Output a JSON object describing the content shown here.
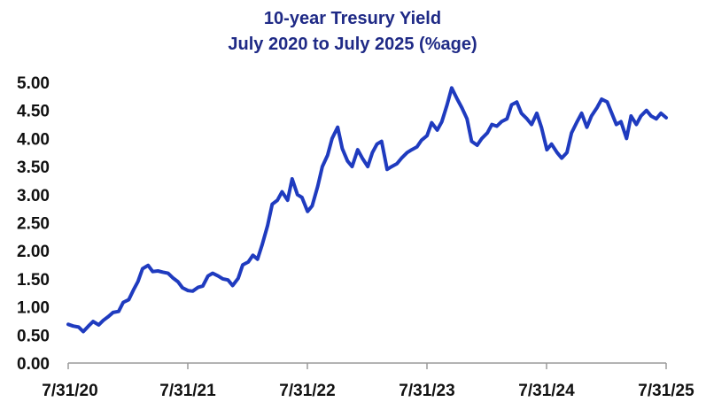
{
  "chart_data": {
    "type": "line",
    "title": "10-year Tresury Yield",
    "subtitle": "July 2020 to July 2025 (%age)",
    "xlabel": "",
    "ylabel": "",
    "ylim": [
      0,
      5
    ],
    "yticks": [
      "0.00",
      "0.50",
      "1.00",
      "1.50",
      "2.00",
      "2.50",
      "3.00",
      "3.50",
      "4.00",
      "4.50",
      "5.00"
    ],
    "xticks": [
      "7/31/20",
      "7/31/21",
      "7/31/22",
      "7/31/23",
      "7/31/24",
      "7/31/25"
    ],
    "xlim": [
      "2020-07-31",
      "2025-07-31"
    ],
    "grid": false,
    "legend": "none",
    "line_color": "#1f3bbf",
    "series": [
      {
        "x": [
          "2020-07-31",
          "2020-08-15",
          "2020-09-01",
          "2020-09-15",
          "2020-10-01",
          "2020-10-15",
          "2020-11-01",
          "2020-11-15",
          "2020-12-01",
          "2020-12-15",
          "2021-01-01",
          "2021-01-15",
          "2021-02-01",
          "2021-02-15",
          "2021-03-01",
          "2021-03-15",
          "2021-04-01",
          "2021-04-15",
          "2021-05-01",
          "2021-05-15",
          "2021-06-01",
          "2021-06-15",
          "2021-07-01",
          "2021-07-15",
          "2021-08-01",
          "2021-08-15",
          "2021-09-01",
          "2021-09-15",
          "2021-10-01",
          "2021-10-15",
          "2021-11-01",
          "2021-11-15",
          "2021-12-01",
          "2021-12-15",
          "2022-01-01",
          "2022-01-15",
          "2022-02-01",
          "2022-02-15",
          "2022-03-01",
          "2022-03-15",
          "2022-04-01",
          "2022-04-15",
          "2022-05-01",
          "2022-05-15",
          "2022-06-01",
          "2022-06-15",
          "2022-07-01",
          "2022-07-15",
          "2022-08-01",
          "2022-08-15",
          "2022-09-01",
          "2022-09-15",
          "2022-10-01",
          "2022-10-15",
          "2022-11-01",
          "2022-11-15",
          "2022-12-01",
          "2022-12-15",
          "2023-01-01",
          "2023-01-15",
          "2023-02-01",
          "2023-02-15",
          "2023-03-01",
          "2023-03-15",
          "2023-04-01",
          "2023-04-15",
          "2023-05-01",
          "2023-05-15",
          "2023-06-01",
          "2023-06-15",
          "2023-07-01",
          "2023-07-15",
          "2023-08-01",
          "2023-08-15",
          "2023-09-01",
          "2023-09-15",
          "2023-10-01",
          "2023-10-15",
          "2023-11-01",
          "2023-11-15",
          "2023-12-01",
          "2023-12-15",
          "2024-01-01",
          "2024-01-15",
          "2024-02-01",
          "2024-02-15",
          "2024-03-01",
          "2024-03-15",
          "2024-04-01",
          "2024-04-15",
          "2024-05-01",
          "2024-05-15",
          "2024-06-01",
          "2024-06-15",
          "2024-07-01",
          "2024-07-15",
          "2024-08-01",
          "2024-08-15",
          "2024-09-01",
          "2024-09-15",
          "2024-10-01",
          "2024-10-15",
          "2024-11-01",
          "2024-11-15",
          "2024-12-01",
          "2024-12-15",
          "2025-01-01",
          "2025-01-15",
          "2025-02-01",
          "2025-02-15",
          "2025-03-01",
          "2025-03-15",
          "2025-04-01",
          "2025-04-15",
          "2025-05-01",
          "2025-05-15",
          "2025-06-01",
          "2025-06-15",
          "2025-07-01",
          "2025-07-15",
          "2025-07-31"
        ],
        "values": [
          0.69,
          0.66,
          0.64,
          0.56,
          0.66,
          0.74,
          0.68,
          0.76,
          0.83,
          0.9,
          0.92,
          1.08,
          1.13,
          1.3,
          1.45,
          1.68,
          1.74,
          1.63,
          1.64,
          1.62,
          1.6,
          1.52,
          1.45,
          1.34,
          1.29,
          1.28,
          1.35,
          1.37,
          1.55,
          1.6,
          1.55,
          1.5,
          1.48,
          1.38,
          1.51,
          1.75,
          1.8,
          1.92,
          1.85,
          2.1,
          2.45,
          2.83,
          2.9,
          3.05,
          2.9,
          3.28,
          3.0,
          2.95,
          2.7,
          2.8,
          3.15,
          3.5,
          3.7,
          4.0,
          4.2,
          3.82,
          3.6,
          3.5,
          3.8,
          3.65,
          3.5,
          3.75,
          3.9,
          3.95,
          3.45,
          3.5,
          3.55,
          3.65,
          3.75,
          3.8,
          3.85,
          3.97,
          4.05,
          4.28,
          4.15,
          4.3,
          4.6,
          4.9,
          4.7,
          4.55,
          4.35,
          3.95,
          3.88,
          4.0,
          4.1,
          4.25,
          4.22,
          4.3,
          4.35,
          4.6,
          4.65,
          4.45,
          4.35,
          4.25,
          4.45,
          4.2,
          3.8,
          3.9,
          3.75,
          3.65,
          3.75,
          4.1,
          4.3,
          4.45,
          4.2,
          4.4,
          4.55,
          4.7,
          4.65,
          4.45,
          4.25,
          4.3,
          4.0,
          4.4,
          4.25,
          4.4,
          4.5,
          4.4,
          4.35,
          4.45,
          4.37
        ]
      }
    ]
  }
}
